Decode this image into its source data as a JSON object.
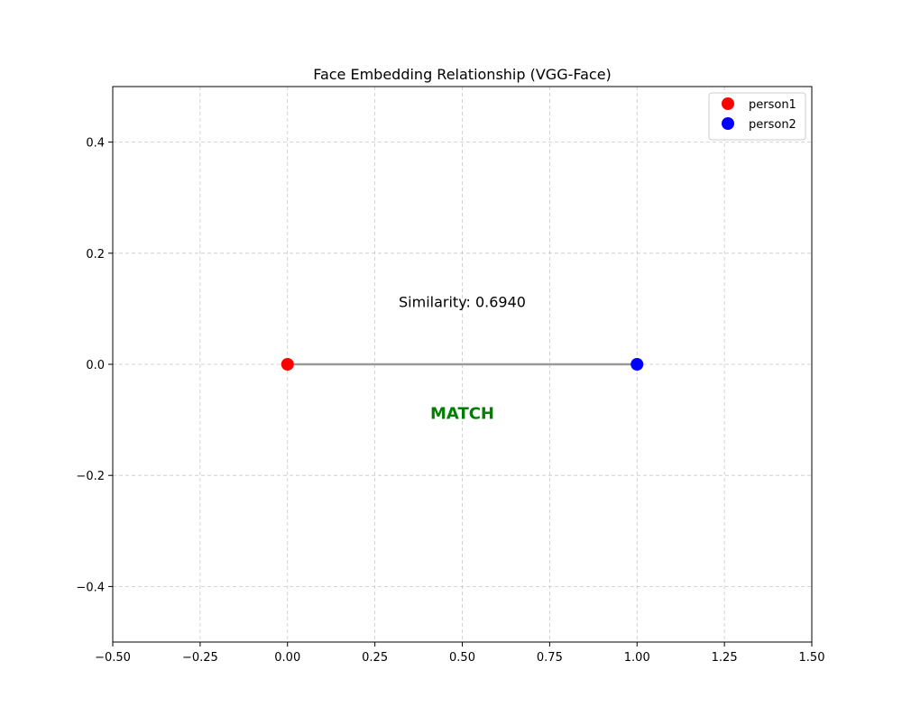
{
  "chart_data": {
    "type": "scatter",
    "title": "Face Embedding Relationship (VGG-Face)",
    "xlabel": "",
    "ylabel": "",
    "xlim": [
      -0.5,
      1.5
    ],
    "ylim": [
      -0.5,
      0.5
    ],
    "x_ticks": [
      -0.5,
      -0.25,
      0.0,
      0.25,
      0.5,
      0.75,
      1.0,
      1.25,
      1.5
    ],
    "x_tick_labels": [
      "−0.50",
      "−0.25",
      "0.00",
      "0.25",
      "0.50",
      "0.75",
      "1.00",
      "1.25",
      "1.50"
    ],
    "y_ticks": [
      -0.4,
      -0.2,
      0.0,
      0.2,
      0.4
    ],
    "y_tick_labels": [
      "−0.4",
      "−0.2",
      "0.0",
      "0.2",
      "0.4"
    ],
    "grid": true,
    "legend_position": "top-right",
    "series": [
      {
        "name": "person1",
        "color": "#ff0000",
        "points": [
          {
            "x": 0.0,
            "y": 0.0
          }
        ]
      },
      {
        "name": "person2",
        "color": "#0000ff",
        "points": [
          {
            "x": 1.0,
            "y": 0.0
          }
        ]
      }
    ],
    "connector": {
      "from": [
        0.0,
        0.0
      ],
      "to": [
        1.0,
        0.0
      ],
      "color": "#999999"
    },
    "annotations": [
      {
        "id": "similarity",
        "text": "Similarity: 0.6940",
        "x": 0.5,
        "y": 0.11,
        "color": "#000000",
        "bold": false
      },
      {
        "id": "match",
        "text": "MATCH",
        "x": 0.5,
        "y": -0.09,
        "color": "#008000",
        "bold": true
      }
    ]
  }
}
